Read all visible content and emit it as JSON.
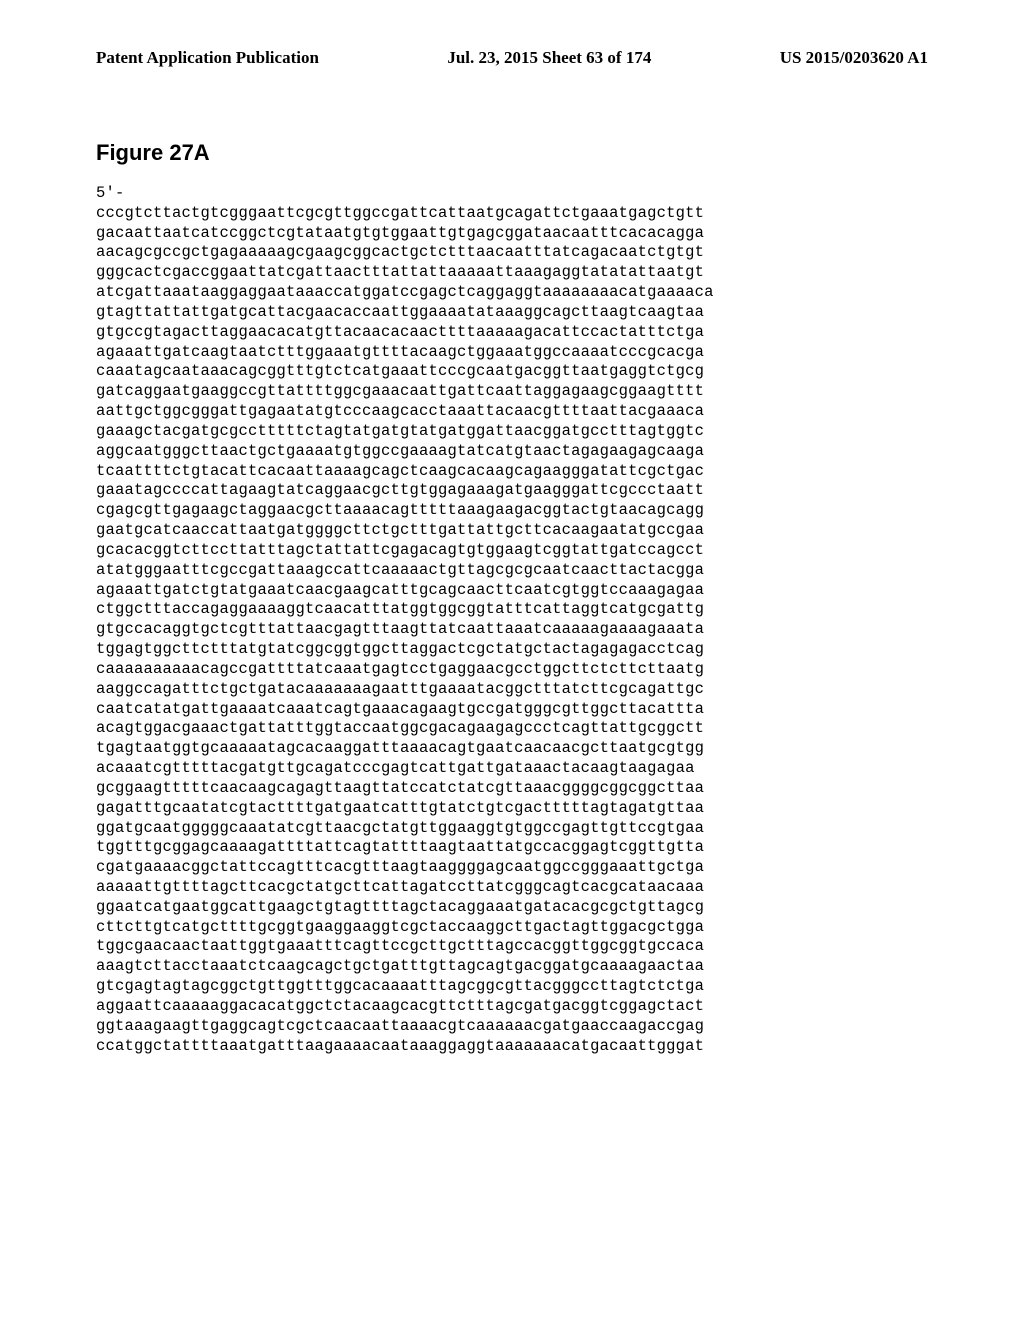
{
  "header": {
    "left": "Patent Application Publication",
    "center": "Jul. 23, 2015  Sheet 63 of 174",
    "right": "US 2015/0203620 A1"
  },
  "figure": {
    "title": "Figure 27A",
    "lead": "5'-",
    "lines": [
      "cccgtcttactgtcgggaattcgcgttggccgattcattaatgcagattctgaaatgagctgtt",
      "gacaattaatcatccggctcgtataatgtgtggaattgtgagcggataacaatttcacacagga",
      "aacagcgccgctgagaaaaagcgaagcggcactgctctttaacaatttatcagacaatctgtgt",
      "gggcactcgaccggaattatcgattaactttattattaaaaattaaagaggtatatattaatgt",
      "atcgattaaataaggaggaataaaccatggatccgagctcaggaggtaaaaaaaacatgaaaaca",
      "gtagttattattgatgcattacgaacaccaattggaaaatataaaggcagcttaagtcaagtaa",
      "gtgccgtagacttaggaacacatgttacaacacaacttttaaaaagacattccactatttctga",
      "agaaattgatcaagtaatctttggaaatgttttacaagctggaaatggccaaaatcccgcacga",
      "caaatagcaataaacagcggtttgtctcatgaaattcccgcaatgacggttaatgaggtctgcg",
      "gatcaggaatgaaggccgttattttggcgaaacaattgattcaattaggagaagcggaagtttt",
      "aattgctggcgggattgagaatatgtcccaagcacctaaattacaacgttttaattacgaaaca",
      "gaaagctacgatgcgcctttttctagtatgatgtatgatggattaacggatgcctttagtggtc",
      "aggcaatgggcttaactgctgaaaatgtggccgaaaagtatcatgtaactagagaagagcaaga",
      "tcaattttctgtacattcacaattaaaagcagctcaagcacaagcagaagggatattcgctgac",
      "gaaatagccccattagaagtatcaggaacgcttgtggagaaagatgaagggattcgccctaatt",
      "cgagcgttgagaagctaggaacgcttaaaacagtttttaaagaagacggtactgtaacagcagg",
      "gaatgcatcaaccattaatgatggggcttctgctttgattattgcttcacaagaatatgccgaa",
      "gcacacggtcttccttatttagctattattcgagacagtgtggaagtcggtattgatccagcct",
      "atatgggaatttcgccgattaaagccattcaaaaactgttagcgcgcaatcaacttactacgga",
      "agaaattgatctgtatgaaatcaacgaagcatttgcagcaacttcaatcgtggtccaaagagaa",
      "ctggctttaccagaggaaaaggtcaacatttatggtggcggtatttcattaggtcatgcgattg",
      "gtgccacaggtgctcgtttattaacgagtttaagttatcaattaaatcaaaaagaaaagaaata",
      "tggagtggcttctttatgtatcggcggtggcttaggactcgctatgctactagagagacctcag",
      "caaaaaaaaaacagccgattttatcaaatgagtcctgaggaacgcctggcttctcttcttaatg",
      "aaggccagatttctgctgatacaaaaaaagaatttgaaaatacggctttatcttcgcagattgc",
      "caatcatatgattgaaaatcaaatcagtgaaacagaagtgccgatgggcgttggcttacattta",
      "acagtggacgaaactgattatttggtaccaatggcgacagaagagccctcagttattgcggctt",
      "tgagtaatggtgcaaaaatagcacaaggatttaaaacagtgaatcaacaacgcttaatgcgtgg",
      "acaaatcgtttttacgatgttgcagatcccgagtcattgattgataaactacaagtaagagaa",
      "gcggaagtttttcaacaagcagagttaagttatccatctatcgttaaacggggcggcggcttaa",
      "gagatttgcaatatcgtacttttgatgaatcatttgtatctgtcgactttttagtagatgttaa",
      "ggatgcaatgggggcaaatatcgttaacgctatgttggaaggtgtggccgagttgttccgtgaa",
      "tggtttgcggagcaaaagattttattcagtattttaagtaattatgccacggagtcggttgtta",
      "cgatgaaaacggctattccagtttcacgtttaagtaaggggagcaatggccgggaaattgctga",
      "aaaaattgttttagcttcacgctatgcttcattagatccttatcgggcagtcacgcataacaaa",
      "ggaatcatgaatggcattgaagctgtagttttagctacaggaaatgatacacgcgctgttagcg",
      "cttcttgtcatgcttttgcggtgaaggaaggtcgctaccaaggcttgactagttggacgctgga",
      "tggcgaacaactaattggtgaaatttcagttccgcttgctttagccacggttggcggtgccaca",
      "aaagtcttacctaaatctcaagcagctgctgatttgttagcagtgacggatgcaaaagaactaa",
      "gtcgagtagtagcggctgttggtttggcacaaaatttagcggcgttacgggccttagtctctga",
      "aggaattcaaaaaggacacatggctctacaagcacgttctttagcgatgacggtcggagctact",
      "ggtaaagaagttgaggcagtcgctcaacaattaaaacgtcaaaaaacgatgaaccaagaccgag",
      "ccatggctattttaaatgatttaagaaaacaataaaggaggtaaaaaaacatgacaattgggat"
    ]
  }
}
